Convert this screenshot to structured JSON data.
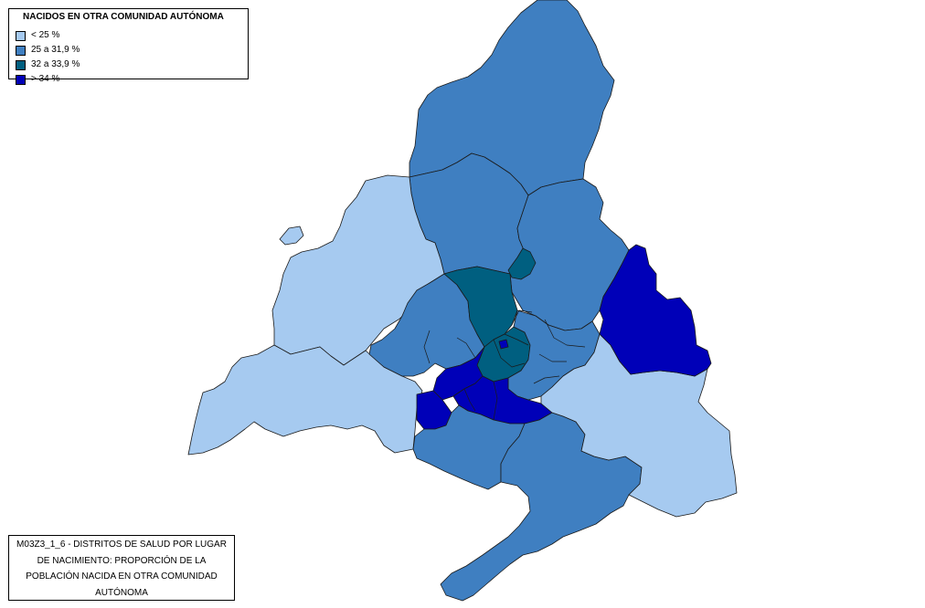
{
  "legend": {
    "title": "NACIDOS EN OTRA COMUNIDAD AUTÓNOMA",
    "items": [
      {
        "label": "< 25 %",
        "color": "#a6caf0"
      },
      {
        "label": "25 a 31,9 %",
        "color": "#3f7fc1"
      },
      {
        "label": "32 a 33,9 %",
        "color": "#005f80"
      },
      {
        "label": "> 34 %",
        "color": "#0000b8"
      }
    ]
  },
  "caption": {
    "text": "M03Z3_1_6 - DISTRITOS DE SALUD POR LUGAR DE NACIMIENTO: PROPORCIÓN DE LA POBLACIÓN NACIDA EN OTRA COMUNIDAD AUTÓNOMA"
  },
  "map": {
    "region_classes": {
      "north-sierra": "25 a 31,9 %",
      "northwest-sierra": "< 25 %",
      "west-sierra": "< 25 %",
      "north-central": "25 a 31,9 %",
      "northeast-corridor": "25 a 31,9 %",
      "east-henares": "> 34 %",
      "southeast-vegas": "< 25 %",
      "south-vegas": "25 a 31,9 %",
      "west-central": "25 a 31,9 %",
      "madrid-north-districts": "32 a 33,9 %",
      "madrid-center-districts": "32 a 33,9 %",
      "southwest-metro": "> 34 %",
      "south-metro": "> 34 %",
      "southwest-rural": "25 a 31,9 %"
    }
  }
}
